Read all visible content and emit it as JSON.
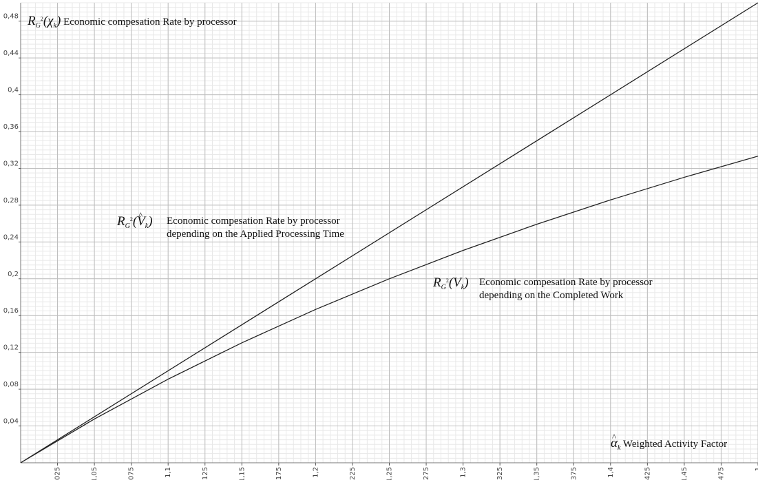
{
  "chart_data": {
    "type": "line",
    "xlim": [
      1,
      1.5
    ],
    "ylim": [
      0,
      0.5
    ],
    "x_ticks": [
      "1,025",
      "1,05",
      "1,075",
      "1,1",
      "1,125",
      "1,15",
      "1,175",
      "1,2",
      "1,225",
      "1,25",
      "1,275",
      "1,3",
      "1,325",
      "1,35",
      "1,375",
      "1,4",
      "1,425",
      "1,45",
      "1,475",
      "1"
    ],
    "y_ticks": [
      "0,04",
      "0,08",
      "0,12",
      "0,16",
      "0,2",
      "0,24",
      "0,28",
      "0,32",
      "0,36",
      "0,4",
      "0,44",
      "0,48"
    ],
    "grid": true,
    "xlabel": "Weighted Activity Factor",
    "series": [
      {
        "name": "Economic compesation Rate by processor depending on the Applied Processing Time",
        "x": [
          1,
          1.5
        ],
        "y": [
          0,
          0.5
        ]
      },
      {
        "name": "Economic compesation Rate by processor depending on the Completed Work",
        "x": [
          1,
          1.05,
          1.1,
          1.15,
          1.2,
          1.25,
          1.3,
          1.35,
          1.4,
          1.45,
          1.5
        ],
        "y": [
          0,
          0.0476,
          0.0909,
          0.1304,
          0.1667,
          0.2,
          0.2308,
          0.2593,
          0.2857,
          0.3103,
          0.3333
        ]
      }
    ],
    "annotations": {
      "top": "Economic compesation Rate by processor",
      "applied_line1": "Economic compesation Rate by processor",
      "applied_line2": "depending on the Applied Processing Time",
      "completed_line1": "Economic compesation Rate by processor",
      "completed_line2": "depending on the Completed Work",
      "alpha": "Weighted Activity Factor"
    },
    "symbols": {
      "R": "R",
      "G": "G",
      "two": "2",
      "chi": "χ",
      "V": "V",
      "k": "k",
      "alpha": "α",
      "lparen": "(",
      "rparen": ")"
    }
  }
}
